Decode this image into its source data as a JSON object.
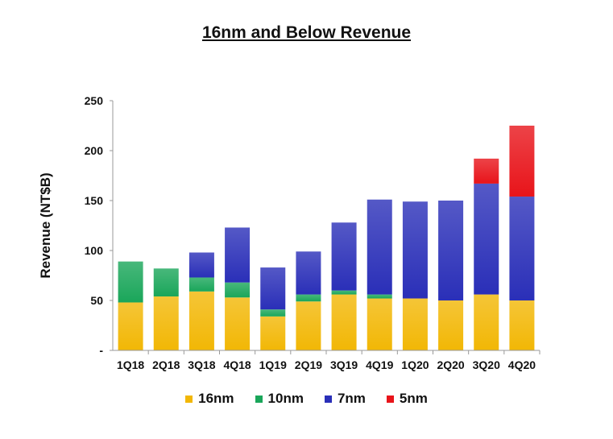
{
  "chart_data": {
    "type": "bar",
    "stacked": true,
    "title": "16nm and Below Revenue",
    "xlabel": "",
    "ylabel": "Revenue (NT$B)",
    "ylim": [
      0,
      250
    ],
    "yticks": [
      0,
      50,
      100,
      150,
      200,
      250
    ],
    "ytick_labels": [
      "-",
      "50",
      "100",
      "150",
      "200",
      "250"
    ],
    "grid": false,
    "legend_position": "bottom",
    "categories": [
      "1Q18",
      "2Q18",
      "3Q18",
      "4Q18",
      "1Q19",
      "2Q19",
      "3Q19",
      "4Q19",
      "1Q20",
      "2Q20",
      "3Q20",
      "4Q20"
    ],
    "series": [
      {
        "name": "16nm",
        "color": "#f2b705",
        "values": [
          48,
          54,
          59,
          53,
          34,
          49,
          56,
          52,
          52,
          50,
          56,
          50
        ]
      },
      {
        "name": "10nm",
        "color": "#1aa65a",
        "values": [
          41,
          28,
          14,
          15,
          7,
          7,
          4,
          4,
          0,
          0,
          0,
          0
        ]
      },
      {
        "name": "7nm",
        "color": "#2a2fb8",
        "values": [
          0,
          0,
          25,
          55,
          42,
          43,
          68,
          95,
          97,
          100,
          111,
          104
        ]
      },
      {
        "name": "5nm",
        "color": "#e8141a",
        "values": [
          0,
          0,
          0,
          0,
          0,
          0,
          0,
          0,
          0,
          0,
          25,
          71
        ]
      }
    ]
  }
}
